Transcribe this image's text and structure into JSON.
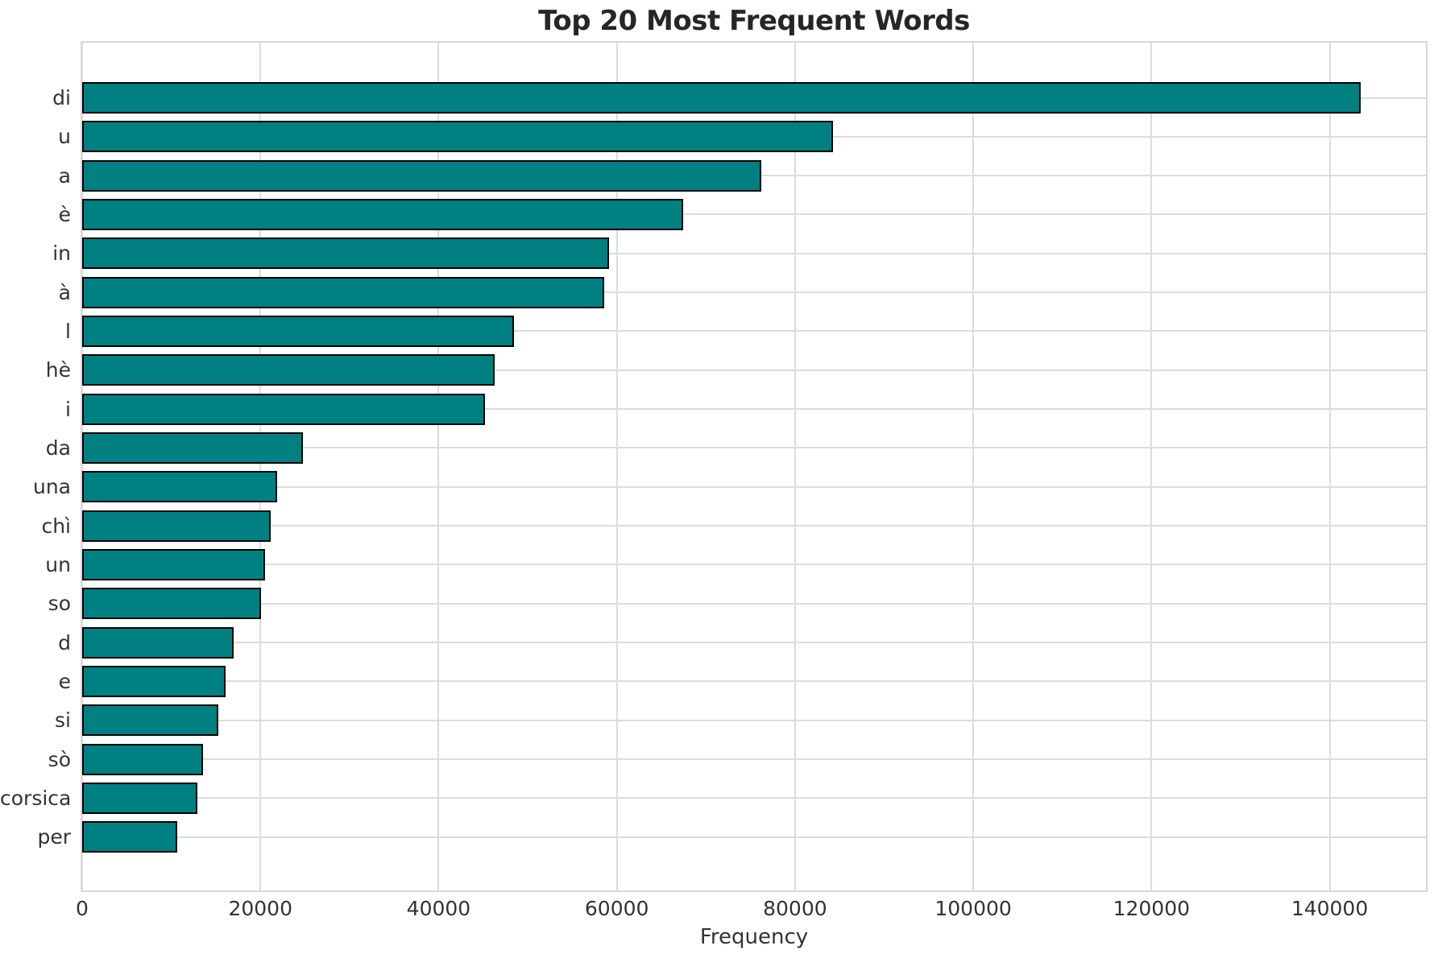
{
  "chart_data": {
    "type": "bar",
    "orientation": "horizontal",
    "title": "Top 20 Most Frequent Words",
    "xlabel": "Frequency",
    "ylabel": "",
    "categories": [
      "di",
      "u",
      "a",
      "è",
      "in",
      "à",
      "l",
      "hè",
      "i",
      "da",
      "una",
      "chì",
      "un",
      "so",
      "d",
      "e",
      "si",
      "sò",
      "corsica",
      "per"
    ],
    "values": [
      143500,
      84300,
      76200,
      67400,
      59100,
      58600,
      48500,
      46300,
      45200,
      24800,
      21900,
      21200,
      20500,
      20100,
      17000,
      16100,
      15300,
      13600,
      12900,
      10700
    ],
    "xlim": [
      0,
      150800
    ],
    "x_ticks": [
      0,
      20000,
      40000,
      60000,
      80000,
      100000,
      120000,
      140000
    ],
    "grid": true,
    "legend": null,
    "bar_color": "#008080",
    "bar_edge_color": "#000000",
    "grid_color": "#dcdcdc",
    "background_color": "#ffffff",
    "tick_color": "#333333",
    "title_color": "#262626"
  }
}
